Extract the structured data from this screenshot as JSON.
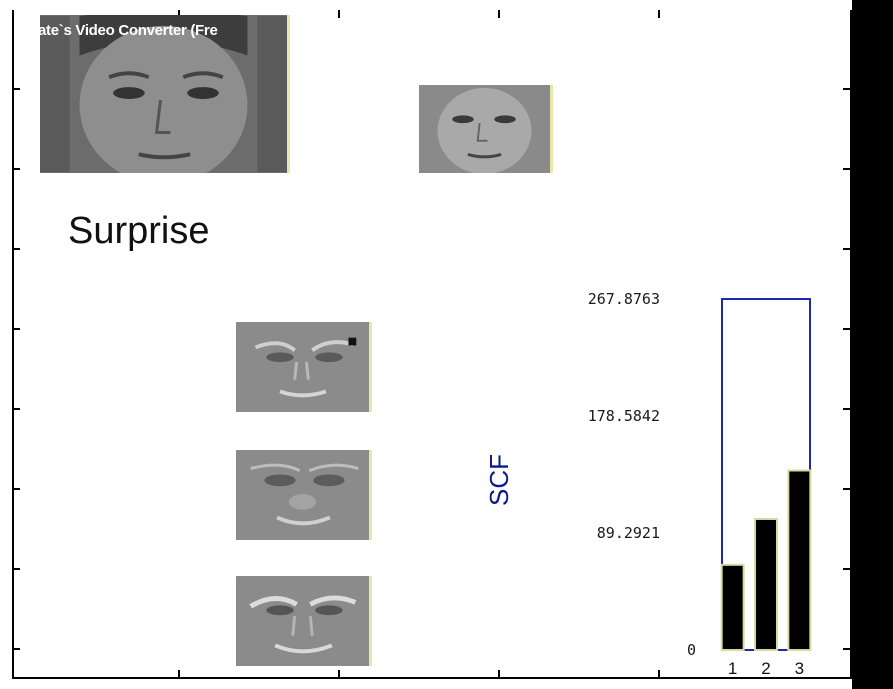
{
  "figure": {
    "window_caption": "ate`s Video Converter (Fre",
    "emotion_label": "Surprise"
  },
  "colors": {
    "bar": "#000000",
    "axes_box": "#1a2aa8",
    "bar_edge": "#d8d8a0",
    "ylabel": "#0a1a8a"
  },
  "chart_data": {
    "type": "bar",
    "categories": [
      "1",
      "2",
      "3"
    ],
    "values": [
      65,
      100,
      137
    ],
    "ylabel": "SCF",
    "yticks": [
      0,
      89.2921,
      178.5842,
      267.8763
    ],
    "ytick_labels": [
      "0",
      "89.2921",
      "178.5842",
      "267.8763"
    ],
    "ylim": [
      0,
      267.8763
    ],
    "grid": false
  }
}
